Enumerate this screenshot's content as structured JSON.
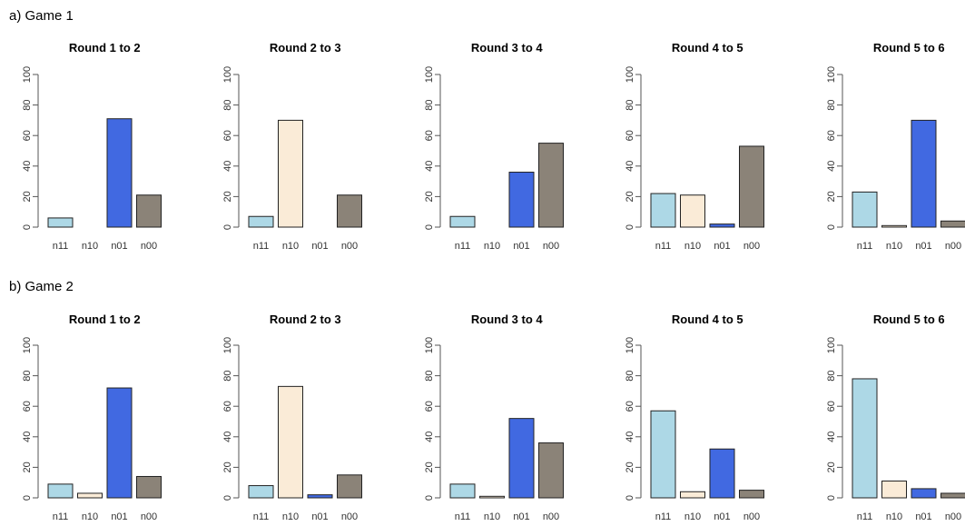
{
  "chart_data": {
    "type": "bar",
    "categories": [
      "n11",
      "n10",
      "n01",
      "n00"
    ],
    "colors": [
      "#add8e6",
      "#faebd7",
      "#4169e1",
      "#8b8378"
    ],
    "ylim": [
      0,
      100
    ],
    "yticks": [
      "0",
      "20",
      "40",
      "60",
      "80",
      "100"
    ],
    "groups": [
      {
        "label": "a) Game 1",
        "panels": [
          {
            "title": "Round 1 to 2",
            "values": [
              6,
              0,
              71,
              21
            ]
          },
          {
            "title": "Round 2 to 3",
            "values": [
              7,
              70,
              0,
              21
            ]
          },
          {
            "title": "Round 3 to 4",
            "values": [
              7,
              0,
              36,
              55
            ]
          },
          {
            "title": "Round 4 to 5",
            "values": [
              22,
              21,
              2,
              53
            ]
          },
          {
            "title": "Round 5 to 6",
            "values": [
              23,
              1,
              70,
              4
            ]
          }
        ]
      },
      {
        "label": "b) Game 2",
        "panels": [
          {
            "title": "Round 1 to 2",
            "values": [
              9,
              3,
              72,
              14
            ]
          },
          {
            "title": "Round 2 to 3",
            "values": [
              8,
              73,
              2,
              15
            ]
          },
          {
            "title": "Round 3 to 4",
            "values": [
              9,
              1,
              52,
              36
            ]
          },
          {
            "title": "Round 4 to 5",
            "values": [
              57,
              4,
              32,
              5
            ]
          },
          {
            "title": "Round 5 to 6",
            "values": [
              78,
              11,
              6,
              3
            ]
          }
        ]
      }
    ]
  }
}
